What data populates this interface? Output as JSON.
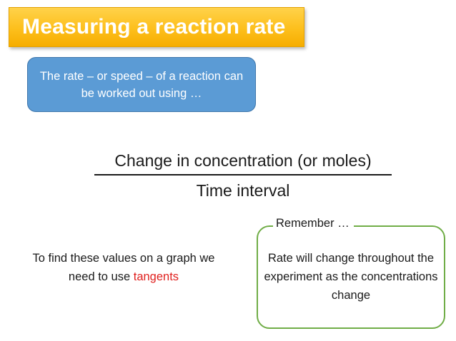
{
  "title": "Measuring a reaction rate",
  "intro": {
    "text": "The rate – or speed – of a reaction can be worked out using …"
  },
  "formula": {
    "numerator": "Change in concentration (or moles)",
    "denominator": "Time interval"
  },
  "tangent_note": {
    "text_before": "To find these values on a graph we need to use ",
    "highlight": "tangents",
    "highlight_color": "#e0201e"
  },
  "remember": {
    "label": "Remember …",
    "text": "Rate will change throughout the experiment as the concentrations change",
    "border_color": "#70ad47"
  },
  "colors": {
    "title_banner": "#fdbf1c",
    "title_text": "#ffffff",
    "intro_box": "#5b9bd5"
  }
}
